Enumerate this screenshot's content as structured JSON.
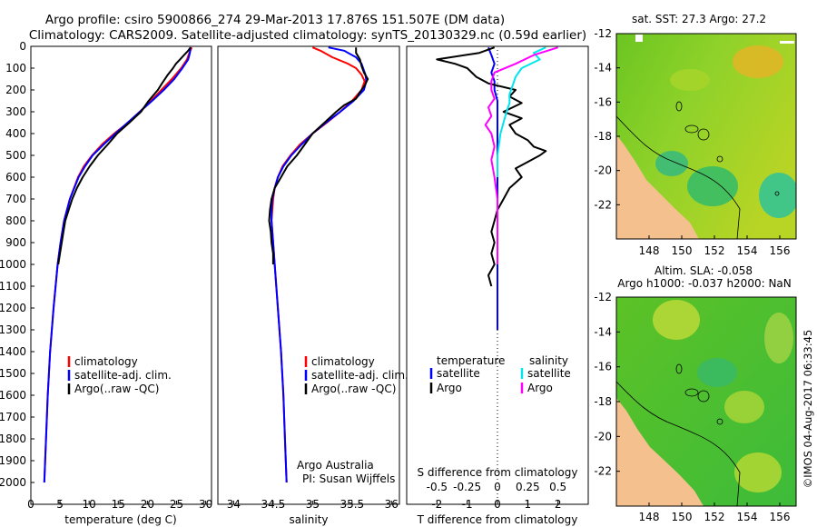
{
  "header": {
    "line1": "Argo profile: csiro 5900866_274 29-Mar-2013 17.876S 151.507E (DM data)",
    "line2": "Climatology: CARS2009. Satellite-adjusted climatology: synTS_20130329.nc (0.59d earlier)"
  },
  "credits": {
    "org": "Argo Australia",
    "pi": "PI: Susan Wijffels",
    "stamp": "©IMOS 04-Aug-2017 06:33:45"
  },
  "maps": {
    "sst": {
      "title": "sat. SST: 27.3 Argo: 27.2"
    },
    "sla": {
      "title1": "Altim. SLA: -0.058",
      "title2": "Argo h1000: -0.037 h2000: NaN"
    }
  },
  "colors": {
    "climatology": "#ff0000",
    "satellite": "#0000ff",
    "argo": "#000000",
    "salinity_satellite": "#00e5ee",
    "salinity_argo": "#ff00ff",
    "land": "#f4c08e",
    "sea_green": "#45bf2c"
  },
  "chart_data": [
    {
      "type": "line",
      "id": "temperature",
      "xlabel": "temperature (deg C)",
      "ylabel": "",
      "xlim": [
        0,
        31
      ],
      "ylim": [
        2100,
        0
      ],
      "xticks": [
        "0",
        "5",
        "10",
        "15",
        "20",
        "25",
        "30"
      ],
      "yticks": [
        "0",
        "100",
        "200",
        "300",
        "400",
        "500",
        "600",
        "700",
        "800",
        "900",
        "1000",
        "1100",
        "1200",
        "1300",
        "1400",
        "1500",
        "1600",
        "1700",
        "1800",
        "1900",
        "2000"
      ],
      "legend": [
        "climatology",
        "satellite-adj. clim.",
        "Argo(..raw -QC)"
      ],
      "series": [
        {
          "name": "climatology",
          "depth": [
            5,
            30,
            60,
            100,
            150,
            200,
            250,
            300,
            350,
            400,
            450,
            500,
            550,
            600,
            700,
            800,
            900,
            1000,
            1200,
            1400,
            1600,
            1800,
            2000
          ],
          "values": [
            27.6,
            27.2,
            26.8,
            25.8,
            24.2,
            22.4,
            20.6,
            18.7,
            16.7,
            14.3,
            12.2,
            10.5,
            9.1,
            8.1,
            6.7,
            5.7,
            5.1,
            4.6,
            3.9,
            3.3,
            2.9,
            2.6,
            2.3
          ]
        },
        {
          "name": "satellite-adj. clim.",
          "depth": [
            5,
            30,
            60,
            100,
            150,
            200,
            250,
            300,
            350,
            400,
            450,
            500,
            550,
            600,
            700,
            800,
            900,
            1000,
            1200,
            1400,
            1600,
            1800,
            2000
          ],
          "values": [
            27.4,
            27.3,
            27.0,
            26.0,
            24.6,
            22.8,
            20.8,
            18.7,
            16.6,
            14.5,
            12.5,
            10.6,
            9.3,
            8.2,
            6.7,
            5.7,
            5.1,
            4.6,
            3.9,
            3.3,
            2.9,
            2.6,
            2.3
          ]
        },
        {
          "name": "Argo(..raw -QC)",
          "depth": [
            5,
            20,
            40,
            60,
            80,
            100,
            130,
            170,
            200,
            250,
            300,
            350,
            400,
            450,
            500,
            550,
            600,
            650,
            700,
            750,
            800,
            850,
            900,
            950,
            1000
          ],
          "values": [
            27.4,
            27.0,
            26.3,
            25.6,
            24.9,
            24.4,
            23.5,
            22.5,
            21.8,
            20.2,
            18.9,
            16.9,
            14.8,
            13.2,
            11.5,
            10.1,
            8.9,
            7.9,
            7.1,
            6.5,
            5.9,
            5.6,
            5.3,
            5.0,
            4.7
          ]
        }
      ]
    },
    {
      "type": "line",
      "id": "salinity",
      "xlabel": "salinity",
      "xlim": [
        33.8,
        36.1
      ],
      "ylim": [
        2100,
        0
      ],
      "xticks": [
        "34",
        "34.5",
        "35",
        "35.5",
        "36"
      ],
      "legend": [
        "climatology",
        "satellite-adj. clim.",
        "Argo(..raw -QC)"
      ],
      "series": [
        {
          "name": "climatology",
          "depth": [
            5,
            20,
            50,
            80,
            100,
            130,
            160,
            200,
            250,
            300,
            350,
            400,
            450,
            500,
            550,
            600,
            650,
            700,
            750,
            800,
            900,
            1000,
            1200,
            1400,
            1600,
            1800,
            2000
          ],
          "values": [
            35.0,
            35.1,
            35.25,
            35.45,
            35.55,
            35.62,
            35.66,
            35.62,
            35.5,
            35.35,
            35.18,
            35.0,
            34.84,
            34.72,
            34.62,
            34.56,
            34.52,
            34.5,
            34.49,
            34.48,
            34.5,
            34.52,
            34.56,
            34.6,
            34.63,
            34.65,
            34.67
          ]
        },
        {
          "name": "satellite-adj. clim.",
          "depth": [
            5,
            20,
            50,
            80,
            100,
            130,
            160,
            200,
            250,
            300,
            350,
            400,
            450,
            500,
            550,
            600,
            650,
            700,
            750,
            800,
            900,
            1000,
            1200,
            1400,
            1600,
            1800,
            2000
          ],
          "values": [
            35.2,
            35.4,
            35.55,
            35.62,
            35.64,
            35.67,
            35.68,
            35.65,
            35.52,
            35.35,
            35.17,
            35.0,
            34.86,
            34.73,
            34.63,
            34.56,
            34.52,
            34.49,
            34.48,
            34.48,
            34.5,
            34.52,
            34.56,
            34.6,
            34.63,
            34.65,
            34.67
          ]
        },
        {
          "name": "Argo(..raw -QC)",
          "depth": [
            5,
            30,
            60,
            90,
            120,
            150,
            180,
            210,
            240,
            270,
            300,
            350,
            400,
            450,
            500,
            550,
            600,
            650,
            700,
            750,
            800,
            850,
            900,
            950,
            1000
          ],
          "values": [
            35.55,
            35.55,
            35.6,
            35.62,
            35.65,
            35.7,
            35.66,
            35.6,
            35.55,
            35.4,
            35.3,
            35.15,
            35.0,
            34.9,
            34.8,
            34.68,
            34.6,
            34.52,
            34.48,
            34.46,
            34.45,
            34.47,
            34.48,
            34.5,
            34.5
          ]
        }
      ]
    },
    {
      "type": "line",
      "id": "differences",
      "xlabel": "T difference from climatology",
      "xlabel_top": "S difference from climatology",
      "xlim": [
        -3,
        3
      ],
      "ylim": [
        2100,
        0
      ],
      "xticks": [
        "-2",
        "-1",
        "0",
        "1",
        "2"
      ],
      "xticks_top": [
        "-0.5",
        "-0.25",
        "0",
        "0.25",
        "0.5"
      ],
      "xticks_top_values": [
        -2,
        -1,
        0,
        1,
        2
      ],
      "legend_headers": [
        "temperature",
        "salinity"
      ],
      "legend": [
        "satellite",
        "Argo",
        "satellite",
        "Argo"
      ],
      "series": [
        {
          "name": "temperature satellite",
          "depth": [
            5,
            40,
            80,
            120,
            160,
            200,
            250,
            300,
            400,
            500,
            600,
            800,
            1000,
            1200,
            1300
          ],
          "values": [
            -0.3,
            -0.2,
            -0.1,
            -0.2,
            -0.1,
            -0.1,
            0.0,
            0.0,
            0.0,
            0.0,
            0.0,
            0.0,
            0.0,
            0.0,
            0.0
          ]
        },
        {
          "name": "temperature Argo",
          "depth": [
            5,
            30,
            60,
            80,
            100,
            140,
            170,
            200,
            230,
            260,
            300,
            330,
            360,
            400,
            430,
            460,
            480,
            500,
            530,
            560,
            600,
            650,
            700,
            750,
            800,
            850,
            900,
            950,
            1000,
            1050,
            1100
          ],
          "values": [
            -0.1,
            -0.6,
            -2.0,
            -1.4,
            -1.0,
            -0.7,
            -0.3,
            0.6,
            0.4,
            0.8,
            0.2,
            0.8,
            0.4,
            0.6,
            1.0,
            1.2,
            1.6,
            1.4,
            1.0,
            0.6,
            0.8,
            0.4,
            0.2,
            0.0,
            -0.1,
            -0.2,
            -0.1,
            -0.2,
            -0.1,
            -0.3,
            -0.2
          ]
        },
        {
          "name": "salinity satellite",
          "depth": [
            5,
            30,
            60,
            100,
            140,
            180,
            220,
            260,
            300,
            400,
            500,
            600
          ],
          "values": [
            1.6,
            1.2,
            1.4,
            0.8,
            0.6,
            0.5,
            0.4,
            0.4,
            0.3,
            0.1,
            0.0,
            0.0
          ]
        },
        {
          "name": "salinity Argo",
          "depth": [
            5,
            40,
            80,
            120,
            160,
            200,
            240,
            280,
            320,
            360,
            400,
            460,
            520,
            600,
            700,
            800,
            900,
            1000
          ],
          "values": [
            2.0,
            1.2,
            0.6,
            -0.1,
            -0.2,
            -0.2,
            -0.1,
            -0.3,
            -0.2,
            -0.4,
            -0.2,
            -0.1,
            -0.2,
            -0.1,
            0.0,
            0.0,
            0.0,
            0.0
          ]
        }
      ]
    },
    {
      "type": "heatmap",
      "id": "map_sst",
      "title": "sat. SST: 27.3 Argo: 27.2",
      "xlim": [
        146,
        157
      ],
      "ylim": [
        -24,
        -12
      ],
      "xticks": [
        "148",
        "150",
        "152",
        "154",
        "156"
      ],
      "yticks": [
        "-12",
        "-14",
        "-16",
        "-18",
        "-20",
        "-22"
      ]
    },
    {
      "type": "heatmap",
      "id": "map_sla",
      "title": "Altim. SLA: -0.058",
      "subtitle": "Argo h1000: -0.037 h2000: NaN",
      "xlim": [
        146,
        157
      ],
      "ylim": [
        -24,
        -12
      ],
      "xticks": [
        "148",
        "150",
        "152",
        "154",
        "156"
      ],
      "yticks": [
        "-12",
        "-14",
        "-16",
        "-18",
        "-20",
        "-22"
      ]
    }
  ]
}
